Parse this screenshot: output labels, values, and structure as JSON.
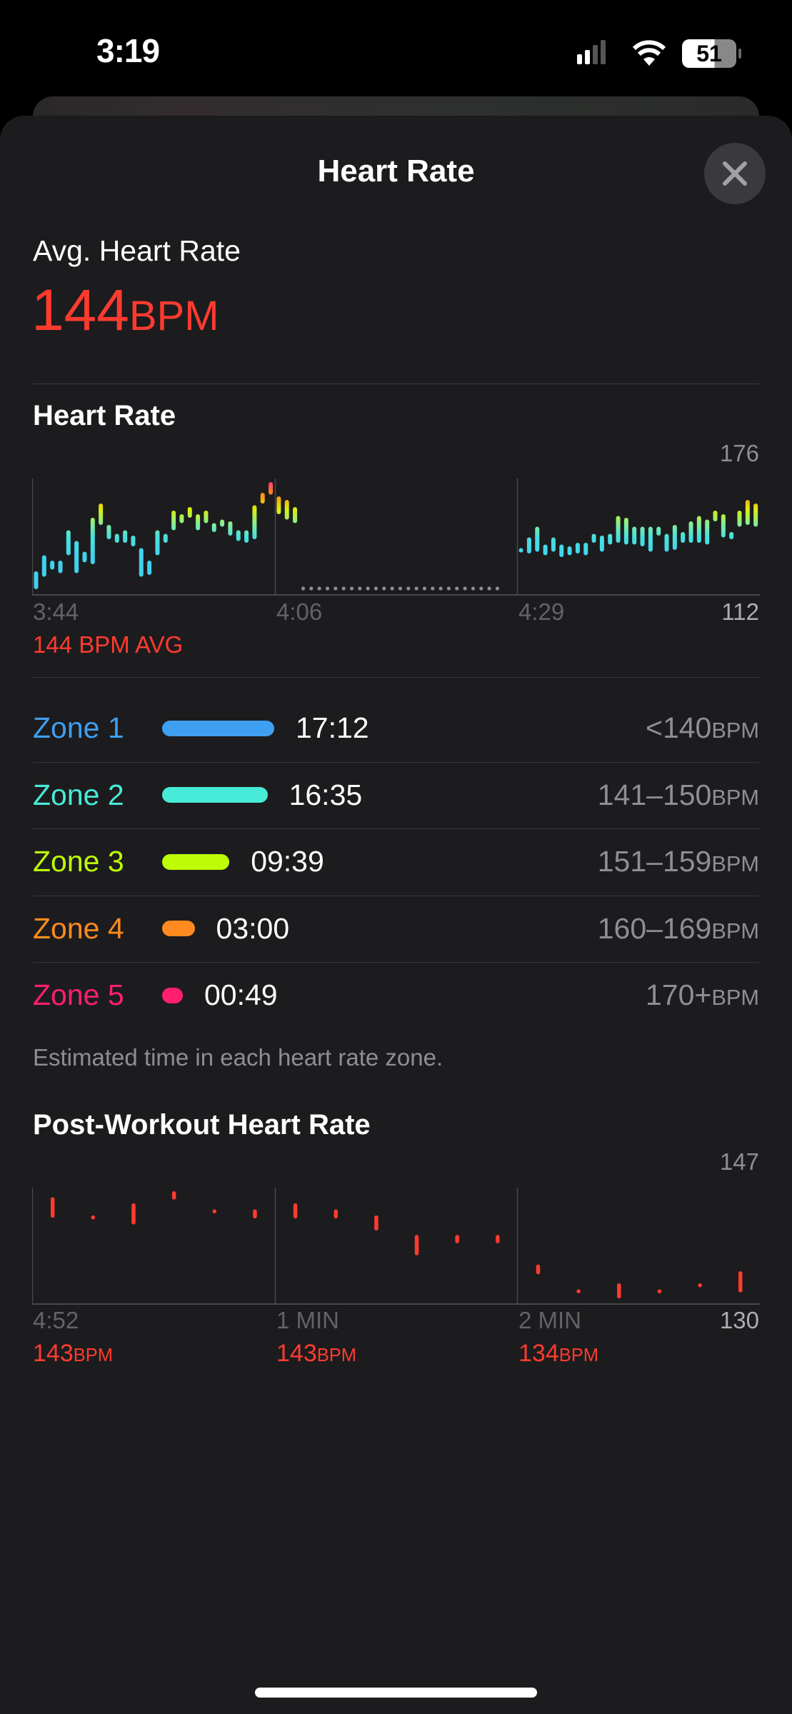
{
  "status_bar": {
    "time": "3:19",
    "battery": "51",
    "icons": [
      "cellular-signal-icon",
      "wifi-icon",
      "battery-icon"
    ]
  },
  "header": {
    "title": "Heart Rate",
    "close_icon": "close-icon"
  },
  "summary": {
    "label": "Avg. Heart Rate",
    "value": "144",
    "unit": "BPM"
  },
  "heart_rate_section": {
    "title": "Heart Rate",
    "avg_label": "144 BPM AVG"
  },
  "zones": [
    {
      "label": "Zone 1",
      "time": "17:12",
      "range": "<140",
      "unit": "BPM",
      "color": "#3f9ff0",
      "fraction": 1.0
    },
    {
      "label": "Zone 2",
      "time": "16:35",
      "range": "141–150",
      "unit": "BPM",
      "color": "#48ead8",
      "fraction": 0.94
    },
    {
      "label": "Zone 3",
      "time": "09:39",
      "range": "151–159",
      "unit": "BPM",
      "color": "#befc06",
      "fraction": 0.6
    },
    {
      "label": "Zone 4",
      "time": "03:00",
      "range": "160–169",
      "unit": "BPM",
      "color": "#ff8a1f",
      "fraction": 0.29
    },
    {
      "label": "Zone 5",
      "time": "00:49",
      "range": "170+",
      "unit": "BPM",
      "color": "#ff1f6e",
      "fraction": 0.11
    }
  ],
  "zones_caption": "Estimated time in each heart rate zone.",
  "post_section": {
    "title": "Post-Workout Heart Rate",
    "values": [
      {
        "value": "143",
        "unit": "BPM"
      },
      {
        "value": "143",
        "unit": "BPM"
      },
      {
        "value": "134",
        "unit": "BPM"
      }
    ]
  },
  "chart_data": [
    {
      "type": "bar",
      "title": "Heart Rate",
      "ylim": [
        112,
        176
      ],
      "y_max_label": "176",
      "y_min_label": "112",
      "x_tick_labels": [
        "3:44",
        "4:06",
        "4:29"
      ],
      "segment1": [
        [
          114,
          124
        ],
        [
          121,
          133
        ],
        [
          125,
          130
        ],
        [
          123,
          130
        ],
        [
          133,
          147
        ],
        [
          123,
          141
        ],
        [
          129,
          135
        ],
        [
          128,
          154
        ],
        [
          150,
          162
        ],
        [
          142,
          150
        ],
        [
          140,
          145
        ],
        [
          140,
          147
        ],
        [
          138,
          144
        ],
        [
          121,
          137
        ],
        [
          122,
          130
        ],
        [
          133,
          147
        ],
        [
          140,
          145
        ],
        [
          147,
          158
        ],
        [
          151,
          156
        ],
        [
          154,
          160
        ],
        [
          147,
          156
        ],
        [
          151,
          158
        ],
        [
          146,
          151
        ],
        [
          149,
          153
        ],
        [
          144,
          152
        ],
        [
          141,
          147
        ],
        [
          140,
          147
        ],
        [
          142,
          161
        ],
        [
          162,
          168
        ],
        [
          167,
          174
        ],
        [
          156,
          166
        ],
        [
          153,
          164
        ],
        [
          151,
          160
        ]
      ],
      "gap_points": 25,
      "segment2": [
        [
          136,
          137
        ],
        [
          134,
          143
        ],
        [
          135,
          149
        ],
        [
          133,
          139
        ],
        [
          135,
          143
        ],
        [
          132,
          139
        ],
        [
          133,
          138
        ],
        [
          134,
          140
        ],
        [
          133,
          140
        ],
        [
          140,
          145
        ],
        [
          135,
          144
        ],
        [
          139,
          145
        ],
        [
          140,
          155
        ],
        [
          139,
          154
        ],
        [
          139,
          149
        ],
        [
          138,
          149
        ],
        [
          135,
          149
        ],
        [
          144,
          149
        ],
        [
          135,
          145
        ],
        [
          136,
          150
        ],
        [
          140,
          146
        ],
        [
          140,
          152
        ],
        [
          140,
          155
        ],
        [
          139,
          153
        ],
        [
          152,
          158
        ],
        [
          143,
          156
        ],
        [
          142,
          146
        ],
        [
          149,
          158
        ],
        [
          150,
          164
        ],
        [
          149,
          162
        ]
      ]
    },
    {
      "type": "bar",
      "title": "Post-Workout Heart Rate",
      "ylim": [
        130,
        147
      ],
      "y_max_label": "147",
      "y_min_label": "130",
      "x_tick_labels": [
        "4:52",
        "1 MIN",
        "2 MIN"
      ],
      "bars": [
        [
          142.5,
          145.6
        ],
        [
          142.5,
          142.9
        ],
        [
          141.5,
          144.7
        ],
        [
          145.2,
          146.5
        ],
        [
          143.3,
          143.8
        ],
        [
          142.4,
          143.8
        ],
        [
          142.4,
          144.7
        ],
        [
          142.4,
          143.8
        ],
        [
          140.6,
          142.9
        ],
        [
          136.9,
          140
        ],
        [
          138.7,
          140
        ],
        [
          138.7,
          140
        ],
        [
          134.1,
          135.6
        ],
        [
          131.4,
          131.9
        ],
        [
          130.5,
          132.8
        ],
        [
          131.4,
          131.9
        ],
        [
          132.3,
          132.8
        ],
        [
          131.4,
          134.6
        ]
      ],
      "color": "#ff3b2f"
    }
  ]
}
